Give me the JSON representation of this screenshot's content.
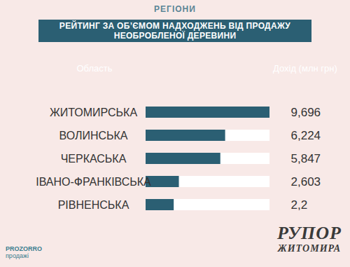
{
  "chart_data": {
    "type": "bar",
    "orientation": "horizontal",
    "title": "РЕГІОНИ",
    "subtitle": "РЕЙТИНГ ЗА ОБ’ЄМОМ НАДХОДЖЕНЬ ВІД ПРОДАЖУ НЕОБРОБЛЕНОЇ ДЕРЕВИНИ",
    "y_label": "Область",
    "x_label": "Дохід (млн грн)",
    "categories": [
      "ЖИТОМИРСЬКА",
      "ВОЛИНСЬКА",
      "ЧЕРКАСЬКА",
      "ІВАНО-ФРАНКІВСЬКА",
      "РІВНЕНСЬКА"
    ],
    "values": [
      9.696,
      6.224,
      5.847,
      2.603,
      2.2
    ],
    "value_labels": [
      "9,696",
      "6,224",
      "5,847",
      "2,603",
      "2,2"
    ],
    "color": "#2b5f73",
    "xlim": [
      0,
      9.696
    ],
    "tick_labels": false,
    "grid": false,
    "data_labels": true,
    "annotations": [
      "PROZORRO",
      "продажі",
      "РУПОР",
      "ЖИТОМИРА"
    ]
  }
}
